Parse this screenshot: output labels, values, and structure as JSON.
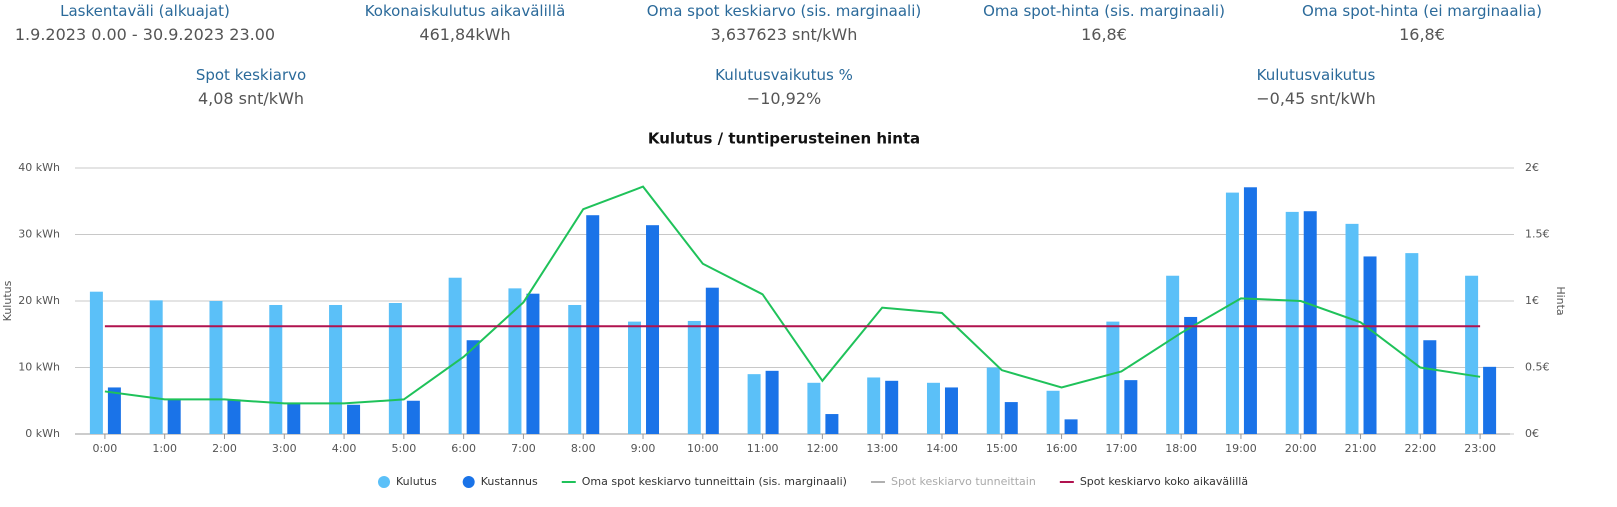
{
  "stats": {
    "row1": [
      {
        "label": "Laskentaväli (alkuajat)",
        "value": "1.9.2023 0.00 - 30.9.2023 23.00"
      },
      {
        "label": "Kokonaiskulutus aikavälillä",
        "value": "461,84kWh"
      },
      {
        "label": "Oma spot keskiarvo (sis. marginaali)",
        "value": "3,637623 snt/kWh"
      },
      {
        "label": "Oma spot-hinta (sis. marginaali)",
        "value": "16,8€"
      },
      {
        "label": "Oma spot-hinta (ei marginaalia)",
        "value": "16,8€"
      }
    ],
    "row2": [
      {
        "label": "Spot keskiarvo",
        "value": "4,08 snt/kWh"
      },
      {
        "label": "Kulutusvaikutus %",
        "value": "−10,92%"
      },
      {
        "label": "Kulutusvaikutus",
        "value": "−0,45 snt/kWh"
      }
    ]
  },
  "chart_data": {
    "type": "bar",
    "title": "Kulutus / tuntiperusteinen hinta",
    "y_label": "Kulutus",
    "y2_label": "Hinta",
    "categories": [
      "0:00",
      "1:00",
      "2:00",
      "3:00",
      "4:00",
      "5:00",
      "6:00",
      "7:00",
      "8:00",
      "9:00",
      "10:00",
      "11:00",
      "12:00",
      "13:00",
      "14:00",
      "15:00",
      "16:00",
      "17:00",
      "18:00",
      "19:00",
      "20:00",
      "21:00",
      "22:00",
      "23:00"
    ],
    "ylim": [
      0,
      40
    ],
    "yticks": [
      {
        "value": 0,
        "label": "0 kWh"
      },
      {
        "value": 10,
        "label": "10 kWh"
      },
      {
        "value": 20,
        "label": "20 kWh"
      },
      {
        "value": 30,
        "label": "30 kWh"
      },
      {
        "value": 40,
        "label": "40 kWh"
      }
    ],
    "y2lim": [
      0,
      2
    ],
    "y2ticks": [
      {
        "value": 0,
        "label": "0€"
      },
      {
        "value": 0.5,
        "label": "0.5€"
      },
      {
        "value": 1,
        "label": "1€"
      },
      {
        "value": 1.5,
        "label": "1.5€"
      },
      {
        "value": 2,
        "label": "2€"
      }
    ],
    "grid": true,
    "series": [
      {
        "name": "Kulutus",
        "type": "bar",
        "color": "#5bc0f8",
        "values": [
          21.4,
          20.1,
          20.0,
          19.4,
          19.4,
          19.7,
          23.5,
          21.9,
          19.4,
          16.9,
          17.0,
          9.0,
          7.7,
          8.5,
          7.7,
          10.0,
          6.5,
          16.9,
          23.8,
          36.3,
          33.4,
          31.6,
          27.2,
          23.8
        ]
      },
      {
        "name": "Kustannus",
        "type": "bar",
        "axis": "y2",
        "color": "#1a73e8",
        "values": [
          0.35,
          0.26,
          0.26,
          0.23,
          0.22,
          0.25,
          0.705,
          1.055,
          1.645,
          1.57,
          1.1,
          0.475,
          0.15,
          0.4,
          0.35,
          0.24,
          0.11,
          0.405,
          0.88,
          1.855,
          1.675,
          1.335,
          0.705,
          0.505
        ]
      },
      {
        "name": "Oma spot keskiarvo tunneittain (sis. marginaali)",
        "type": "line",
        "axis": "y2",
        "color": "#1fc25a",
        "values": [
          0.32,
          0.26,
          0.26,
          0.23,
          0.23,
          0.26,
          0.58,
          0.99,
          1.69,
          1.86,
          1.28,
          1.05,
          0.4,
          0.95,
          0.91,
          0.48,
          0.35,
          0.47,
          0.76,
          1.02,
          1.0,
          0.84,
          0.5,
          0.43
        ]
      },
      {
        "name": "Spot keskiarvo tunneittain",
        "type": "line",
        "axis": "y2",
        "color": "#b0b0b0",
        "hidden": true
      },
      {
        "name": "Spot keskiarvo koko aikavälillä",
        "type": "line",
        "axis": "y2",
        "color": "#b0124f",
        "values": [
          0.81,
          0.81,
          0.81,
          0.81,
          0.81,
          0.81,
          0.81,
          0.81,
          0.81,
          0.81,
          0.81,
          0.81,
          0.81,
          0.81,
          0.81,
          0.81,
          0.81,
          0.81,
          0.81,
          0.81,
          0.81,
          0.81,
          0.81,
          0.81
        ]
      }
    ]
  }
}
